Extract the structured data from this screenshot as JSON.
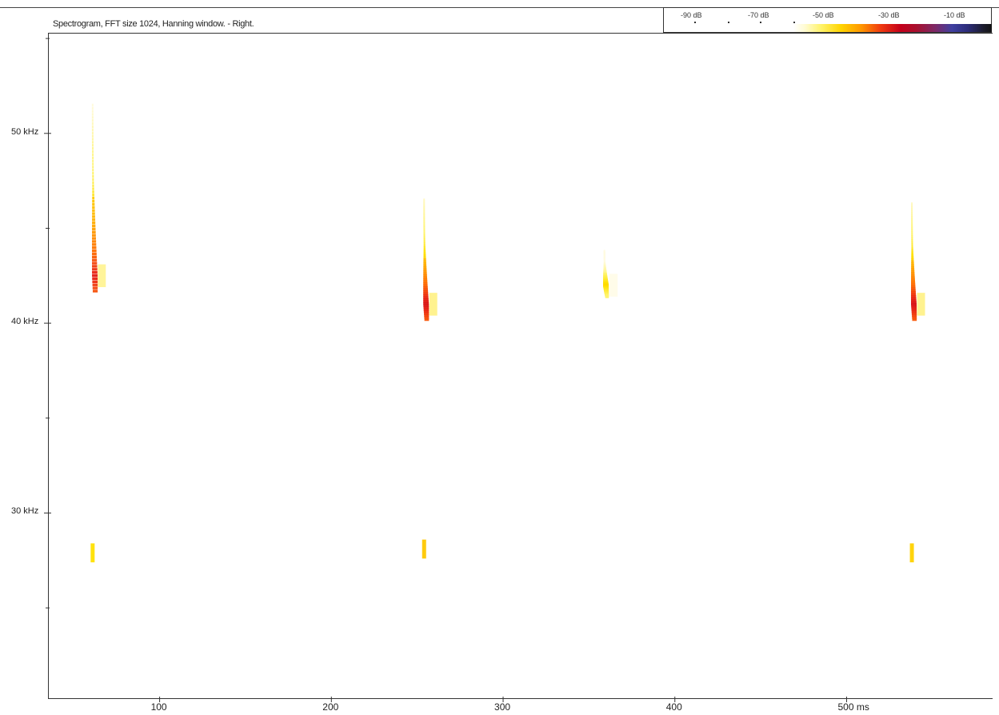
{
  "chart_data": {
    "type": "heatmap",
    "title": "Spectrogram, FFT size 1024, Hanning window. - Right.",
    "x_unit": "ms",
    "y_unit": "kHz",
    "x_range": [
      35,
      585
    ],
    "y_range": [
      20.2,
      55.3
    ],
    "x_ticks": [
      100,
      200,
      300,
      400,
      500
    ],
    "x_tick_labels": [
      "100",
      "200",
      "300",
      "400",
      "500 ms"
    ],
    "y_ticks": [
      25,
      30,
      35,
      40,
      45,
      50,
      55
    ],
    "y_tick_labels": [
      "",
      "30 kHz",
      "",
      "40 kHz",
      "",
      "50 kHz",
      ""
    ],
    "colorbar": {
      "labels": [
        "-90 dB",
        "-70 dB",
        "-50 dB",
        "-30 dB",
        "-10 dB"
      ],
      "values_db": [
        -90,
        -70,
        -50,
        -30,
        -10
      ]
    },
    "calls": [
      {
        "time_ms": 61,
        "start_khz": 51.5,
        "end_khz": 41.7,
        "peak_khz": 42.5,
        "peak_db": -35,
        "harmonic_khz": 28.0,
        "harmonic_db": -60
      },
      {
        "time_ms": 254,
        "start_khz": 46.5,
        "end_khz": 40.2,
        "peak_khz": 41.0,
        "peak_db": -33,
        "harmonic_khz": 28.2,
        "harmonic_db": -55
      },
      {
        "time_ms": 359,
        "start_khz": 43.8,
        "end_khz": 41.4,
        "peak_khz": 42.0,
        "peak_db": -58,
        "harmonic_khz": null,
        "harmonic_db": null
      },
      {
        "time_ms": 538,
        "start_khz": 46.3,
        "end_khz": 40.2,
        "peak_khz": 41.0,
        "peak_db": -33,
        "harmonic_khz": 28.0,
        "harmonic_db": -57
      }
    ]
  }
}
